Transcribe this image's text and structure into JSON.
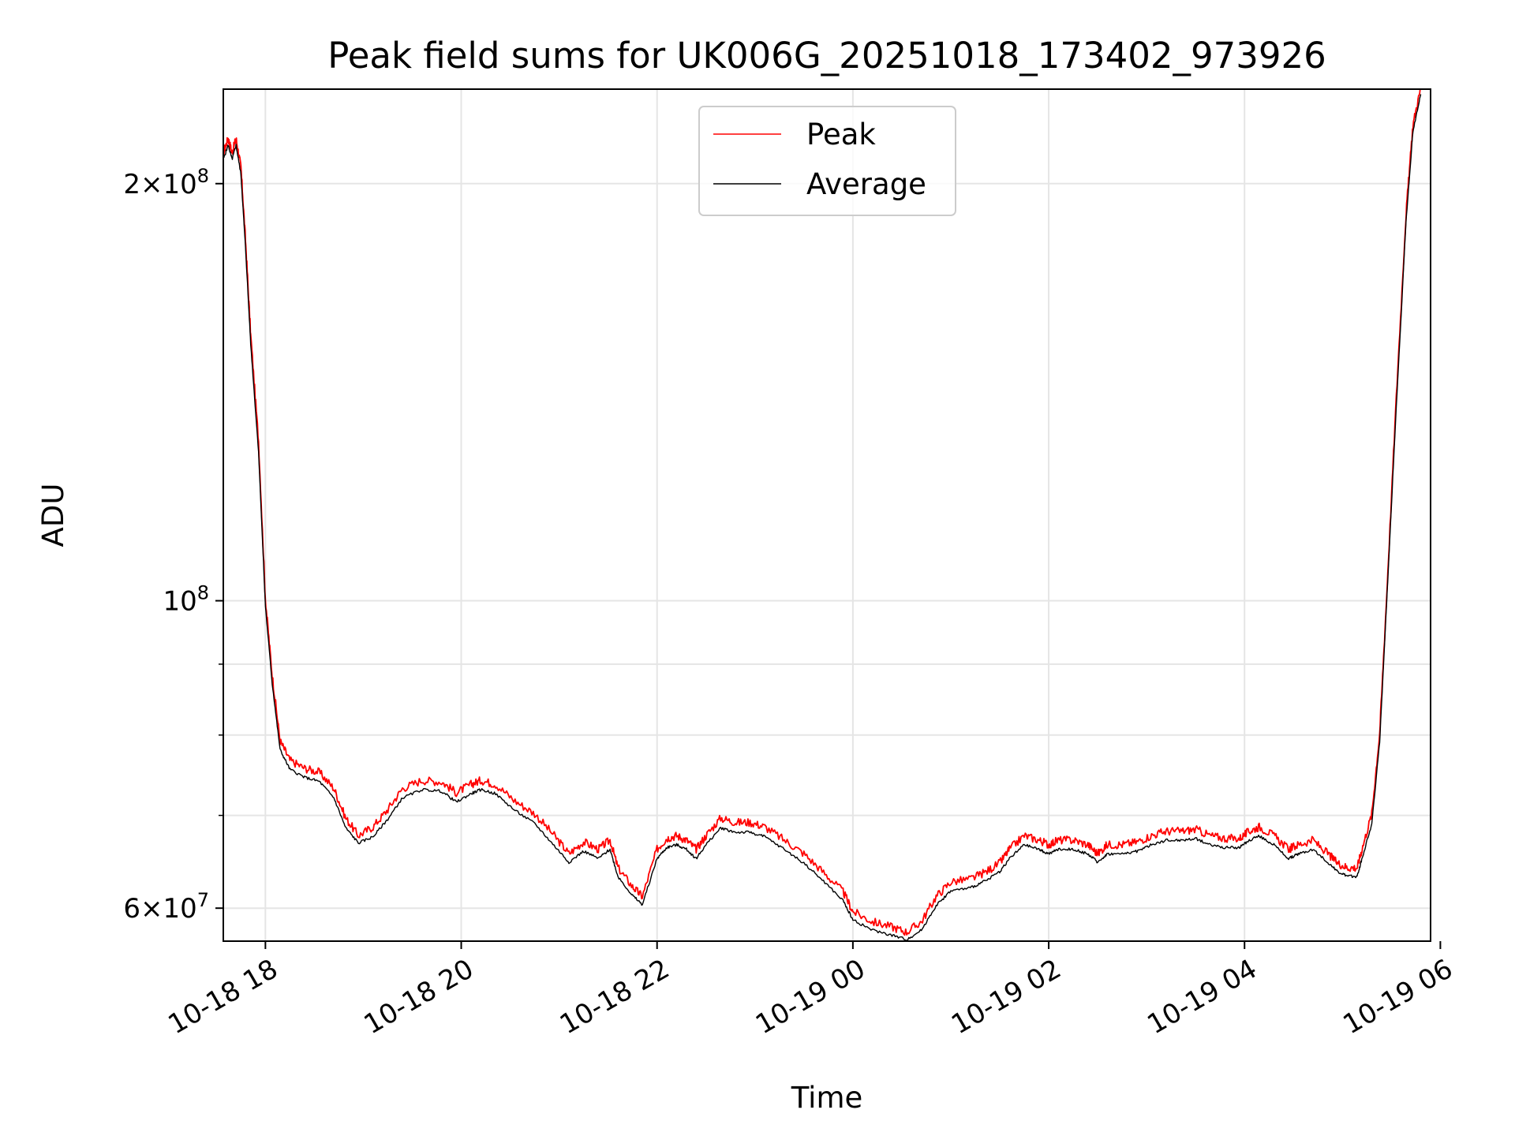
{
  "chart_data": {
    "type": "line",
    "title": "Peak field sums for UK006G_20251018_173402_973926",
    "xlabel": "Time",
    "ylabel": "ADU",
    "yscale": "log",
    "ylim": [
      56800000,
      234000000
    ],
    "xlim_hours": [
      17.57,
      29.9
    ],
    "grid": true,
    "legend_position": "upper center",
    "x_ticks": [
      {
        "hour": 18,
        "label": "10-18 18"
      },
      {
        "hour": 20,
        "label": "10-18 20"
      },
      {
        "hour": 22,
        "label": "10-18 22"
      },
      {
        "hour": 24,
        "label": "10-19 00"
      },
      {
        "hour": 26,
        "label": "10-19 02"
      },
      {
        "hour": 28,
        "label": "10-19 04"
      },
      {
        "hour": 30,
        "label": "10-19 06"
      }
    ],
    "y_ticks_major": [
      {
        "value": 60000000,
        "base": "6",
        "exp": "7"
      },
      {
        "value": 100000000,
        "base": "",
        "exp": "8"
      },
      {
        "value": 200000000,
        "base": "2",
        "exp": "8"
      }
    ],
    "y_ticks_minor": [
      70000000,
      80000000,
      90000000
    ],
    "times_label": "×10",
    "series": [
      {
        "name": "Peak",
        "color": "#ff0000",
        "points": [
          [
            17.57,
            210000000
          ],
          [
            17.62,
            215000000
          ],
          [
            17.66,
            210000000
          ],
          [
            17.7,
            215000000
          ],
          [
            17.75,
            205000000
          ],
          [
            17.8,
            180000000
          ],
          [
            17.85,
            155000000
          ],
          [
            17.93,
            130000000
          ],
          [
            18.0,
            100000000
          ],
          [
            18.07,
            88000000
          ],
          [
            18.15,
            79000000
          ],
          [
            18.25,
            76500000
          ],
          [
            18.4,
            75500000
          ],
          [
            18.55,
            75000000
          ],
          [
            18.7,
            73000000
          ],
          [
            18.82,
            69500000
          ],
          [
            18.95,
            67500000
          ],
          [
            19.1,
            68500000
          ],
          [
            19.25,
            70500000
          ],
          [
            19.4,
            73000000
          ],
          [
            19.6,
            74000000
          ],
          [
            19.8,
            73800000
          ],
          [
            19.95,
            72500000
          ],
          [
            20.1,
            73500000
          ],
          [
            20.2,
            74000000
          ],
          [
            20.35,
            73500000
          ],
          [
            20.55,
            71500000
          ],
          [
            20.75,
            70000000
          ],
          [
            20.95,
            67500000
          ],
          [
            21.1,
            65500000
          ],
          [
            21.25,
            66800000
          ],
          [
            21.4,
            66000000
          ],
          [
            21.52,
            67000000
          ],
          [
            21.6,
            64000000
          ],
          [
            21.75,
            62000000
          ],
          [
            21.85,
            61000000
          ],
          [
            22.0,
            66000000
          ],
          [
            22.1,
            67200000
          ],
          [
            22.2,
            67500000
          ],
          [
            22.3,
            67000000
          ],
          [
            22.4,
            66000000
          ],
          [
            22.5,
            67500000
          ],
          [
            22.65,
            69500000
          ],
          [
            22.8,
            69000000
          ],
          [
            22.95,
            69000000
          ],
          [
            23.1,
            68500000
          ],
          [
            23.3,
            67000000
          ],
          [
            23.5,
            65500000
          ],
          [
            23.7,
            63500000
          ],
          [
            23.9,
            61500000
          ],
          [
            24.0,
            59500000
          ],
          [
            24.2,
            58500000
          ],
          [
            24.4,
            58000000
          ],
          [
            24.55,
            57500000
          ],
          [
            24.7,
            58500000
          ],
          [
            24.85,
            61000000
          ],
          [
            25.0,
            62500000
          ],
          [
            25.2,
            62800000
          ],
          [
            25.35,
            63500000
          ],
          [
            25.5,
            64500000
          ],
          [
            25.6,
            66000000
          ],
          [
            25.75,
            67500000
          ],
          [
            25.9,
            67000000
          ],
          [
            26.0,
            66500000
          ],
          [
            26.1,
            67000000
          ],
          [
            26.25,
            67000000
          ],
          [
            26.4,
            66500000
          ],
          [
            26.5,
            65500000
          ],
          [
            26.6,
            66500000
          ],
          [
            26.75,
            66500000
          ],
          [
            26.9,
            66800000
          ],
          [
            27.05,
            67500000
          ],
          [
            27.2,
            68000000
          ],
          [
            27.35,
            68000000
          ],
          [
            27.5,
            68200000
          ],
          [
            27.65,
            67500000
          ],
          [
            27.8,
            67200000
          ],
          [
            27.95,
            67200000
          ],
          [
            28.05,
            68000000
          ],
          [
            28.15,
            68500000
          ],
          [
            28.3,
            67500000
          ],
          [
            28.45,
            66000000
          ],
          [
            28.55,
            66500000
          ],
          [
            28.7,
            67000000
          ],
          [
            28.85,
            65500000
          ],
          [
            28.95,
            64500000
          ],
          [
            29.05,
            64000000
          ],
          [
            29.15,
            64000000
          ],
          [
            29.2,
            66000000
          ],
          [
            29.3,
            70000000
          ],
          [
            29.38,
            80000000
          ],
          [
            29.45,
            100000000
          ],
          [
            29.55,
            140000000
          ],
          [
            29.65,
            190000000
          ],
          [
            29.72,
            220000000
          ],
          [
            29.8,
            234000000
          ]
        ]
      },
      {
        "name": "Average",
        "color": "#000000",
        "points": [
          [
            17.57,
            208000000
          ],
          [
            17.62,
            213000000
          ],
          [
            17.66,
            208000000
          ],
          [
            17.7,
            213000000
          ],
          [
            17.75,
            203000000
          ],
          [
            17.8,
            178000000
          ],
          [
            17.85,
            153000000
          ],
          [
            17.93,
            128000000
          ],
          [
            18.0,
            99000000
          ],
          [
            18.07,
            87000000
          ],
          [
            18.15,
            78000000
          ],
          [
            18.25,
            75500000
          ],
          [
            18.4,
            74500000
          ],
          [
            18.55,
            74000000
          ],
          [
            18.7,
            72000000
          ],
          [
            18.82,
            68500000
          ],
          [
            18.95,
            66800000
          ],
          [
            19.1,
            67500000
          ],
          [
            19.25,
            69500000
          ],
          [
            19.4,
            72000000
          ],
          [
            19.6,
            73000000
          ],
          [
            19.8,
            72800000
          ],
          [
            19.95,
            71500000
          ],
          [
            20.1,
            72500000
          ],
          [
            20.2,
            73000000
          ],
          [
            20.35,
            72500000
          ],
          [
            20.55,
            70500000
          ],
          [
            20.75,
            69000000
          ],
          [
            20.95,
            66500000
          ],
          [
            21.1,
            64700000
          ],
          [
            21.25,
            65900000
          ],
          [
            21.4,
            65100000
          ],
          [
            21.52,
            66100000
          ],
          [
            21.6,
            63200000
          ],
          [
            21.75,
            61200000
          ],
          [
            21.85,
            60300000
          ],
          [
            22.0,
            65100000
          ],
          [
            22.1,
            66300000
          ],
          [
            22.2,
            66600000
          ],
          [
            22.3,
            66100000
          ],
          [
            22.4,
            65100000
          ],
          [
            22.5,
            66600000
          ],
          [
            22.65,
            68500000
          ],
          [
            22.8,
            68000000
          ],
          [
            22.95,
            68000000
          ],
          [
            23.1,
            67500000
          ],
          [
            23.3,
            66100000
          ],
          [
            23.5,
            64600000
          ],
          [
            23.7,
            62700000
          ],
          [
            23.9,
            60700000
          ],
          [
            24.0,
            58800000
          ],
          [
            24.2,
            57800000
          ],
          [
            24.4,
            57300000
          ],
          [
            24.55,
            56900000
          ],
          [
            24.7,
            57800000
          ],
          [
            24.85,
            60200000
          ],
          [
            25.0,
            61700000
          ],
          [
            25.2,
            62000000
          ],
          [
            25.35,
            62700000
          ],
          [
            25.5,
            63700000
          ],
          [
            25.6,
            65100000
          ],
          [
            25.75,
            66600000
          ],
          [
            25.9,
            66100000
          ],
          [
            26.0,
            65600000
          ],
          [
            26.1,
            66100000
          ],
          [
            26.25,
            66100000
          ],
          [
            26.4,
            65600000
          ],
          [
            26.5,
            64700000
          ],
          [
            26.6,
            65600000
          ],
          [
            26.75,
            65600000
          ],
          [
            26.9,
            65900000
          ],
          [
            27.05,
            66600000
          ],
          [
            27.2,
            67100000
          ],
          [
            27.35,
            67100000
          ],
          [
            27.5,
            67300000
          ],
          [
            27.65,
            66600000
          ],
          [
            27.8,
            66300000
          ],
          [
            27.95,
            66300000
          ],
          [
            28.05,
            67100000
          ],
          [
            28.15,
            67600000
          ],
          [
            28.3,
            66600000
          ],
          [
            28.45,
            65100000
          ],
          [
            28.55,
            65600000
          ],
          [
            28.7,
            66100000
          ],
          [
            28.85,
            64700000
          ],
          [
            28.95,
            63700000
          ],
          [
            29.05,
            63200000
          ],
          [
            29.15,
            63200000
          ],
          [
            29.2,
            65100000
          ],
          [
            29.3,
            69000000
          ],
          [
            29.38,
            79000000
          ],
          [
            29.45,
            99000000
          ],
          [
            29.55,
            138000000
          ],
          [
            29.65,
            188000000
          ],
          [
            29.72,
            218000000
          ],
          [
            29.8,
            232000000
          ]
        ]
      }
    ]
  }
}
